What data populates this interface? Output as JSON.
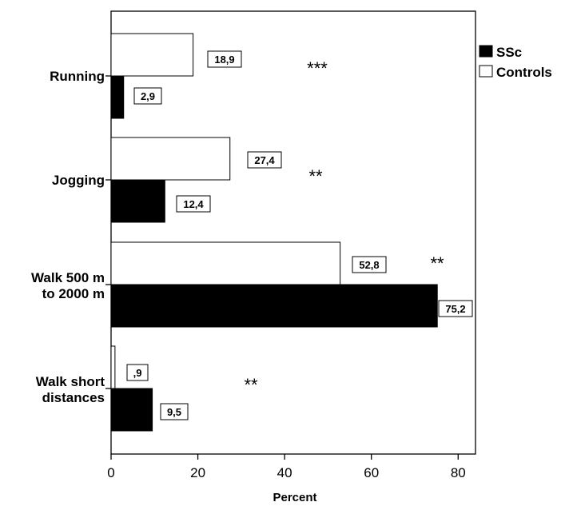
{
  "chart_data": {
    "type": "bar",
    "orientation": "horizontal",
    "categories": [
      "Running",
      "Jogging",
      "Walk 500 m\nto 2000 m",
      "Walk short\ndistances"
    ],
    "series": [
      {
        "name": "Controls",
        "values": [
          18.9,
          27.4,
          52.8,
          0.9
        ],
        "labels": [
          "18,9",
          "27,4",
          "52,8",
          ",9"
        ],
        "color": "#ffffff"
      },
      {
        "name": "SSc",
        "values": [
          2.9,
          12.4,
          75.2,
          9.5
        ],
        "labels": [
          "2,9",
          "12,4",
          "75,2",
          "9,5"
        ],
        "color": "#000000"
      }
    ],
    "significance": [
      "***",
      "**",
      "**",
      "**"
    ],
    "xlabel": "Percent",
    "ylabel": "",
    "xlim": [
      0,
      84
    ],
    "xticks": [
      0,
      20,
      40,
      60,
      80
    ],
    "grid": false,
    "legend_position": "top-right",
    "legend": [
      "SSc",
      "Controls"
    ]
  }
}
